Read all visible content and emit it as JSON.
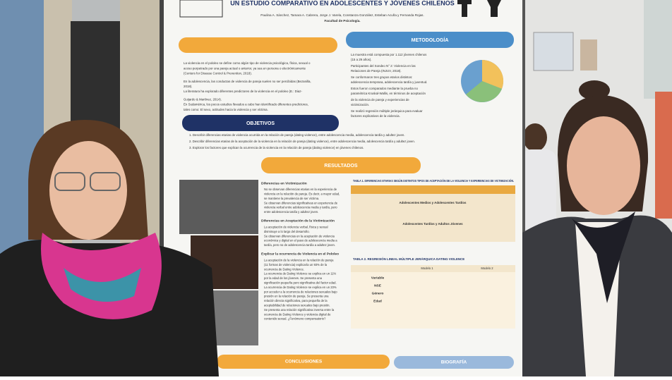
{
  "poster": {
    "title": "UN ESTUDIO COMPARATIVO EN ADOLESCENTES Y JÓVENES CHILENOS",
    "authors": "Paulina A. Sánchez, Tamara A. Cabrera, Jorge J. Varela, Constanza González, Esteban Acuña y Fernanda Rojas.",
    "affiliation": "Facultad de Psicología.",
    "introduction": [
      "La violencia en el pololeo se define como algún tipo de violencia psicológica, física, sexual o",
      "acoso perpetrado por una pareja actual o anterior, ya sea en persona o electrónicamente",
      "(Centers for Disease Control & Prevention, 2018).",
      "En la adolescencia, las conductas de violencia de pareja suelen no ser percibidas (Bezanilla,",
      "2018).",
      "La literatura ha explorado diferentes predictores de la violencia en el pololeo (E.: Diaz-",
      "Guijardo & Martínez, 2014).",
      "En Sudamérica, los pocos estudios llevados a cabo han identificado diferentes predictores,",
      "tales como: El sexo, actitudes hacia la violencia y ser víctima."
    ],
    "methodology": {
      "heading": "METODOLOGÍA",
      "lines": [
        "La muestra está compuesta por 1.112 jóvenes chilenos",
        "(15 a 29 años).",
        "Participantes del Sondeo N° 2: Violencia en las",
        "Relaciones de Pareja (INJUV, 2018).",
        "Se conformaron tres grupos etarios distintos:",
        "adolescencia temprana, adolescencia tardía y juventud.",
        "Estos fueron comparados mediante la prueba no",
        "paramétrica Kruskal-Wallis, en términos de aceptación",
        "de la violencia de pareja y experiencias de",
        "victimización.",
        "Se realizó regresión múltiple jerárquica para evaluar",
        "factores explicativos de la violencia."
      ]
    },
    "objectives": {
      "heading": "OBJETIVOS",
      "items": [
        "1.  Describir diferencias etarias de violencia ocurrida en la relación de pareja (dating violence), entre adolescencia media, adolescencia tardía y adultez joven.",
        "2.  Describir diferencias etarias de la aceptación de la violencia en la relación de pareja (dating violence), entre adolescencia media, adolescencia tardía y adultez joven.",
        "3.  Explorar los factores que explican la ocurrencia de la violencia en la relación de pareja (dating violence) en jóvenes chilenos."
      ]
    },
    "results": {
      "heading": "RESULTADOS",
      "sections": [
        {
          "heading": "Diferencias en  Victimización",
          "lines": [
            "No se observan diferencias etarias en la experiencia de",
            "violencia en la relación de pareja. Es decir, a mayor edad,",
            "se mantiene la prevalencia de ser víctima.",
            "Se observan diferencias significativas en experiencia de",
            "violencia verbal entre adolescencia media y tardía, pero",
            "entre adolescencia tardía y adultez joven."
          ]
        },
        {
          "heading": "Diferencias en Aceptación de la Victimización",
          "lines": [
            "La aceptación de violencia verbal, física y sexual",
            "disminuye a lo largo del desarrollo.",
            "Se observan diferencias en la aceptación de violencia",
            "económica y digital en el paso de adolescencia media a",
            "tardía, pero no de adolescencia tardía a adultez joven."
          ]
        },
        {
          "heading": "Explicar la ocurrencia de Violencia en el Pololeo",
          "lines": [
            "La aceptación de la violencia en la relación de pareja",
            "(11 formas de violencia) explicaría un 93% de la",
            "ocurrencia de Dating Violence.",
            "La ocurrencia de Dating Violence se explica en un 11%",
            "por la edad de los jóvenes. Se presenta una",
            "significación pequeña pero significativa del factor edad.",
            "La ocurrencia de Dating Violence se explica en un 23%",
            "por acceder a la ocurrencia de relaciones sexuales bajo",
            "presión en la relación de pareja. Se presenta una",
            "relación directa significativa, para pequeña de la",
            "aceptabilidad de relaciones sexuales bajo presión.",
            "Se presenta una relación significativa inversa entre la",
            "ocurrencia de Dating Violence y violencia digital de",
            "contenido sexual. ¿Fenómeno compensatorio?"
          ]
        }
      ]
    },
    "table1": {
      "title": "TABLA 1. DIFERENCIAS ETARIAS SEGÚN DISTINTOS TIPOS DE ACEPTACIÓN DE LA VIOLENCIA Y EXPERIENCIAS DE VICTIMIZACIÓN.",
      "subheads": [
        "Adolescentes Medios y Adolescentes Tardíos",
        "Adolescentes Tardíos y Adultos Jóvenes"
      ]
    },
    "table2": {
      "title": "TABLA 2. REGRESIÓN LINEAL MÚLTIPLE JERÁRQUICA DATING VIOLENCE",
      "models": [
        "Modelo 1",
        "Modelo 2"
      ],
      "rows": [
        "Variable",
        "NSE",
        "Género",
        "Edad"
      ]
    },
    "conclusions": {
      "heading": "CONCLUSIONES"
    },
    "bibliography": {
      "heading": "BIOGRAFÍA"
    }
  }
}
